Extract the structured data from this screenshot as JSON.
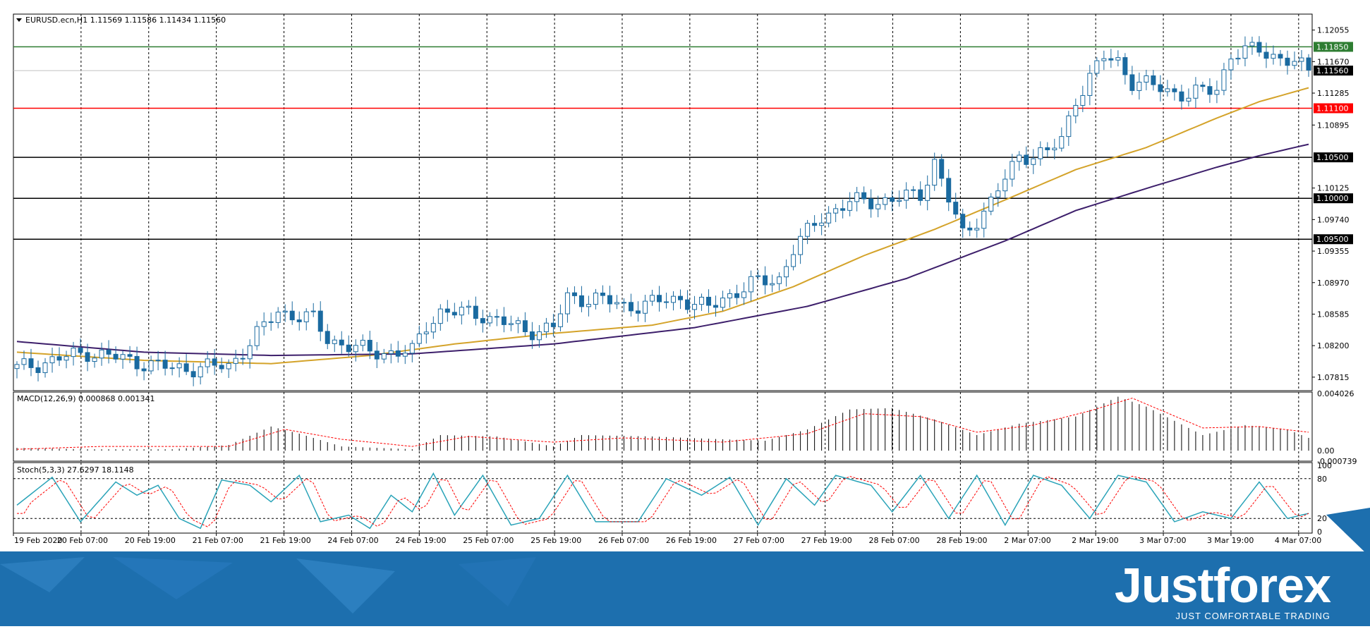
{
  "symbol_header": "EURUSD.ecn,H1  1.11569 1.11586 1.11434 1.11560",
  "brand": {
    "name": "Justforex",
    "tagline": "JUST COMFORTABLE TRADING"
  },
  "colors": {
    "bull": "#1f77b4",
    "bear": "#1a6aa0",
    "ma_fast": "#d4a32a",
    "ma_slow": "#3d1f6b",
    "support_green": "#2e7d32",
    "resist_red": "#ff0000",
    "level": "#000000",
    "macd_signal": "#ff0000",
    "stoch_main": "#29a3b8",
    "stoch_signal": "#ff0000",
    "footer": "#1d6fae"
  },
  "chart_data": [
    {
      "type": "candlestick",
      "title": "EURUSD.ecn,H1  1.11569 1.11586 1.11434 1.11560",
      "ylim": [
        1.0765,
        1.1225
      ],
      "y_ticks": [
        "1.12055",
        "1.11670",
        "1.11285",
        "1.10895",
        "1.10125",
        "1.09740",
        "1.09355",
        "1.08970",
        "1.08585",
        "1.08200",
        "1.07815"
      ],
      "x_tick_labels": [
        "19 Feb 2020",
        "20 Feb 07:00",
        "20 Feb 19:00",
        "21 Feb 07:00",
        "21 Feb 19:00",
        "24 Feb 07:00",
        "24 Feb 19:00",
        "25 Feb 07:00",
        "25 Feb 19:00",
        "26 Feb 07:00",
        "26 Feb 19:00",
        "27 Feb 07:00",
        "27 Feb 19:00",
        "28 Feb 07:00",
        "28 Feb 19:00",
        "2 Mar 07:00",
        "2 Mar 19:00",
        "3 Mar 07:00",
        "3 Mar 19:00",
        "4 Mar 07:00"
      ],
      "candle_count": 184,
      "anchors": [
        [
          0,
          1.0792
        ],
        [
          10,
          1.0812
        ],
        [
          22,
          1.0792
        ],
        [
          30,
          1.0795
        ],
        [
          37,
          1.0862
        ],
        [
          42,
          1.0852
        ],
        [
          44,
          1.0828
        ],
        [
          50,
          1.0812
        ],
        [
          56,
          1.0812
        ],
        [
          58,
          1.0845
        ],
        [
          60,
          1.0862
        ],
        [
          66,
          1.0858
        ],
        [
          72,
          1.0838
        ],
        [
          76,
          1.0842
        ],
        [
          78,
          1.0878
        ],
        [
          82,
          1.0878
        ],
        [
          86,
          1.0868
        ],
        [
          90,
          1.0872
        ],
        [
          94,
          1.0878
        ],
        [
          98,
          1.0865
        ],
        [
          100,
          1.0878
        ],
        [
          104,
          1.0895
        ],
        [
          108,
          1.0902
        ],
        [
          110,
          1.0938
        ],
        [
          114,
          1.0978
        ],
        [
          118,
          1.0995
        ],
        [
          124,
          1.0998
        ],
        [
          128,
          1.1005
        ],
        [
          130,
          1.1045
        ],
        [
          132,
          1.0998
        ],
        [
          134,
          1.0955
        ],
        [
          138,
          1.0995
        ],
        [
          142,
          1.1052
        ],
        [
          146,
          1.1055
        ],
        [
          148,
          1.1072
        ],
        [
          150,
          1.1122
        ],
        [
          154,
          1.1172
        ],
        [
          156,
          1.1168
        ],
        [
          158,
          1.1142
        ],
        [
          162,
          1.1135
        ],
        [
          166,
          1.1125
        ],
        [
          170,
          1.1135
        ],
        [
          172,
          1.1175
        ],
        [
          176,
          1.1182
        ],
        [
          180,
          1.1168
        ],
        [
          183,
          1.1156
        ]
      ],
      "ma_fast_anchors": [
        [
          0,
          1.0812
        ],
        [
          18,
          1.0802
        ],
        [
          36,
          1.0798
        ],
        [
          50,
          1.0808
        ],
        [
          62,
          1.0822
        ],
        [
          76,
          1.0835
        ],
        [
          90,
          1.0845
        ],
        [
          100,
          1.0862
        ],
        [
          110,
          1.0892
        ],
        [
          120,
          1.093
        ],
        [
          130,
          1.0962
        ],
        [
          140,
          1.0998
        ],
        [
          150,
          1.1035
        ],
        [
          160,
          1.1062
        ],
        [
          170,
          1.1098
        ],
        [
          176,
          1.1118
        ],
        [
          183,
          1.1135
        ]
      ],
      "ma_slow_anchors": [
        [
          0,
          1.0825
        ],
        [
          18,
          1.0812
        ],
        [
          36,
          1.0808
        ],
        [
          56,
          1.081
        ],
        [
          76,
          1.0822
        ],
        [
          96,
          1.0842
        ],
        [
          112,
          1.0868
        ],
        [
          126,
          1.0902
        ],
        [
          140,
          1.0948
        ],
        [
          150,
          1.0985
        ],
        [
          160,
          1.1012
        ],
        [
          170,
          1.1038
        ],
        [
          176,
          1.1052
        ],
        [
          183,
          1.1066
        ]
      ],
      "levels": [
        {
          "value": 1.1185,
          "label": "1.11850",
          "color": "#2e7d32"
        },
        {
          "value": 1.1156,
          "label": "1.11560",
          "color": "#c0c0c0"
        },
        {
          "value": 1.111,
          "label": "1.11100",
          "color": "#ff0000"
        },
        {
          "value": 1.105,
          "label": "1.10500",
          "color": "#000000"
        },
        {
          "value": 1.1,
          "label": "1.10000",
          "color": "#000000"
        },
        {
          "value": 1.095,
          "label": "1.09500",
          "color": "#000000"
        }
      ]
    },
    {
      "type": "bar",
      "title": "MACD(12,26,9) 0.000868 0.001341",
      "ylim": [
        -0.000739,
        0.004026
      ],
      "y_ticks": [
        "0.004026",
        "0.00",
        "-0.000739"
      ],
      "macd_anchors": [
        [
          0,
          0.0002
        ],
        [
          10,
          0.0001
        ],
        [
          22,
          0.0001
        ],
        [
          30,
          0.0004
        ],
        [
          36,
          0.0017
        ],
        [
          40,
          0.0012
        ],
        [
          46,
          0.0003
        ],
        [
          56,
          0.0001
        ],
        [
          60,
          0.0011
        ],
        [
          68,
          0.001
        ],
        [
          76,
          0.0003
        ],
        [
          80,
          0.0011
        ],
        [
          90,
          0.001
        ],
        [
          100,
          0.0008
        ],
        [
          106,
          0.0007
        ],
        [
          112,
          0.0015
        ],
        [
          118,
          0.0029
        ],
        [
          124,
          0.003
        ],
        [
          130,
          0.0022
        ],
        [
          136,
          0.0011
        ],
        [
          142,
          0.0019
        ],
        [
          150,
          0.0024
        ],
        [
          156,
          0.0038
        ],
        [
          160,
          0.0031
        ],
        [
          168,
          0.0011
        ],
        [
          174,
          0.0018
        ],
        [
          180,
          0.0015
        ],
        [
          183,
          0.0009
        ]
      ],
      "signal_anchors": [
        [
          0,
          0.0001
        ],
        [
          12,
          0.0003
        ],
        [
          30,
          0.0003
        ],
        [
          38,
          0.0015
        ],
        [
          46,
          0.0008
        ],
        [
          56,
          0.0003
        ],
        [
          64,
          0.001
        ],
        [
          76,
          0.0006
        ],
        [
          86,
          0.0009
        ],
        [
          100,
          0.0006
        ],
        [
          112,
          0.0012
        ],
        [
          120,
          0.0026
        ],
        [
          128,
          0.0024
        ],
        [
          136,
          0.0013
        ],
        [
          144,
          0.0018
        ],
        [
          152,
          0.0028
        ],
        [
          158,
          0.0037
        ],
        [
          168,
          0.0016
        ],
        [
          176,
          0.0017
        ],
        [
          183,
          0.0013
        ]
      ]
    },
    {
      "type": "line",
      "title": "Stoch(5,3,3) 27.6297 18.1148",
      "ylim": [
        0,
        100
      ],
      "y_ticks": [
        "100",
        "80",
        "20",
        "0"
      ],
      "stoch_anchors": [
        [
          0,
          40
        ],
        [
          5,
          82
        ],
        [
          9,
          15
        ],
        [
          14,
          75
        ],
        [
          17,
          55
        ],
        [
          20,
          70
        ],
        [
          23,
          20
        ],
        [
          26,
          5
        ],
        [
          29,
          78
        ],
        [
          33,
          70
        ],
        [
          36,
          45
        ],
        [
          40,
          85
        ],
        [
          43,
          15
        ],
        [
          47,
          25
        ],
        [
          50,
          5
        ],
        [
          53,
          55
        ],
        [
          56,
          30
        ],
        [
          59,
          88
        ],
        [
          62,
          25
        ],
        [
          66,
          85
        ],
        [
          70,
          10
        ],
        [
          74,
          20
        ],
        [
          78,
          85
        ],
        [
          82,
          15
        ],
        [
          88,
          15
        ],
        [
          92,
          80
        ],
        [
          97,
          55
        ],
        [
          101,
          82
        ],
        [
          105,
          10
        ],
        [
          109,
          80
        ],
        [
          113,
          40
        ],
        [
          116,
          85
        ],
        [
          121,
          70
        ],
        [
          124,
          30
        ],
        [
          128,
          85
        ],
        [
          132,
          20
        ],
        [
          136,
          85
        ],
        [
          140,
          10
        ],
        [
          144,
          85
        ],
        [
          148,
          70
        ],
        [
          152,
          20
        ],
        [
          156,
          85
        ],
        [
          160,
          75
        ],
        [
          164,
          15
        ],
        [
          168,
          30
        ],
        [
          172,
          20
        ],
        [
          176,
          75
        ],
        [
          180,
          20
        ],
        [
          183,
          27.6
        ]
      ]
    }
  ]
}
